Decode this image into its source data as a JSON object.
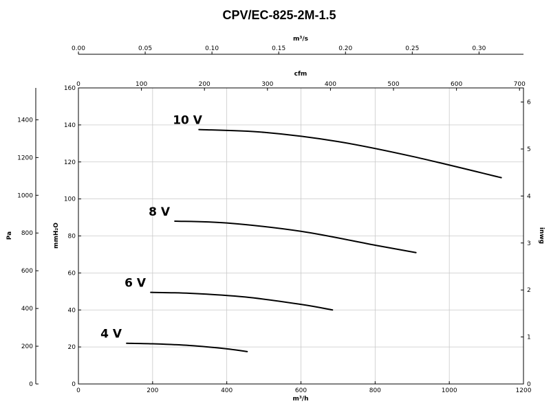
{
  "chart_data": {
    "type": "line",
    "title": "CPV/EC-825-2M-1.5",
    "xlabel": "m³/h",
    "ylabel": "mmH₂O",
    "xlim": [
      0,
      1200
    ],
    "ylim": [
      0,
      160
    ],
    "x_ticks": [
      0,
      200,
      400,
      600,
      800,
      1000,
      1200
    ],
    "y_ticks": [
      0,
      20,
      40,
      60,
      80,
      100,
      120,
      140,
      160
    ],
    "grid": true,
    "top_axis_1": {
      "label": "m³/s",
      "lim": [
        0,
        0.3333
      ],
      "ticks": [
        "0.00",
        "0.05",
        "0.10",
        "0.15",
        "0.20",
        "0.25",
        "0.30"
      ]
    },
    "top_axis_2": {
      "label": "cfm",
      "lim": [
        0,
        706.3
      ],
      "ticks": [
        "0",
        "100",
        "200",
        "300",
        "400",
        "500",
        "600",
        "700"
      ]
    },
    "left_axis": {
      "label": "Pa",
      "lim": [
        0,
        1569
      ],
      "ticks": [
        "0",
        "200",
        "400",
        "600",
        "800",
        "1000",
        "1200",
        "1400"
      ]
    },
    "right_axis": {
      "label": "inwg",
      "lim": [
        0,
        6.3
      ],
      "ticks": [
        "0",
        "1",
        "2",
        "3",
        "4",
        "5",
        "6"
      ]
    },
    "series": [
      {
        "name": "10 V",
        "x": [
          325,
          500,
          700,
          900,
          1140
        ],
        "y": [
          137.5,
          136,
          131,
          123,
          111.5
        ]
      },
      {
        "name": "8 V",
        "x": [
          260,
          400,
          600,
          800,
          910
        ],
        "y": [
          88,
          87,
          82.5,
          75,
          71
        ]
      },
      {
        "name": "6 V",
        "x": [
          195,
          300,
          450,
          600,
          685
        ],
        "y": [
          49.5,
          49,
          47,
          43,
          40
        ]
      },
      {
        "name": "4 V",
        "x": [
          130,
          200,
          300,
          400,
          455
        ],
        "y": [
          22,
          21.7,
          20.8,
          19,
          17.5
        ]
      }
    ]
  }
}
